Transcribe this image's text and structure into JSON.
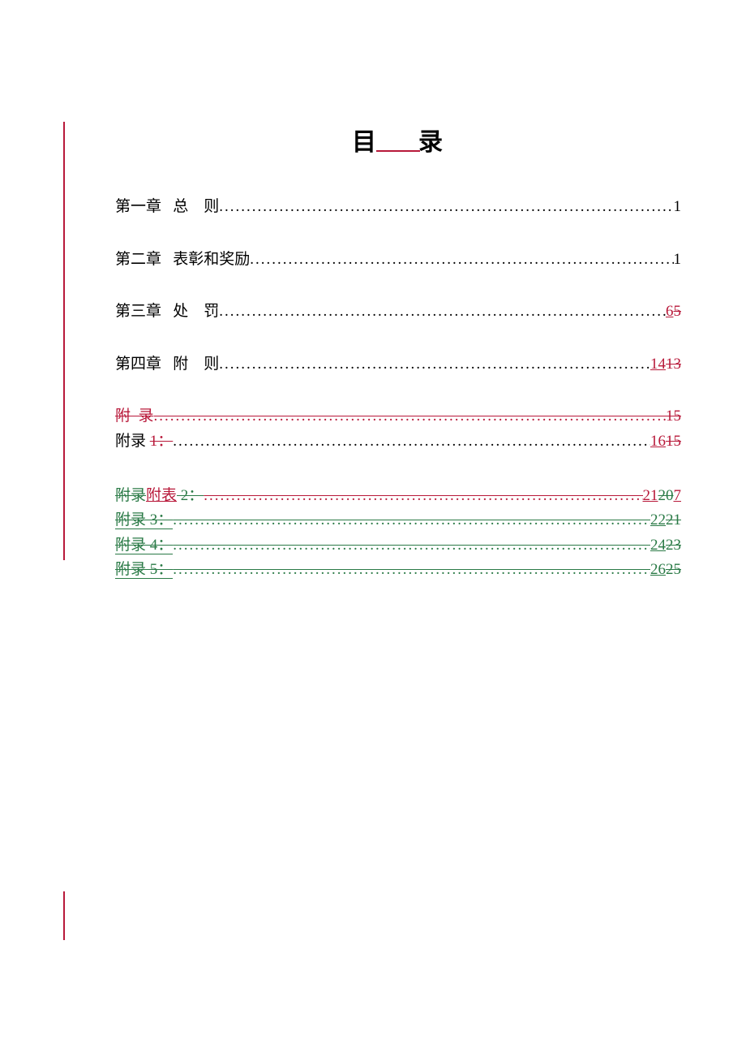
{
  "title": {
    "left": "目",
    "right": "录"
  },
  "lines": [
    {
      "kind": "simple",
      "label": "第一章   总    则",
      "page": "1",
      "spacing": "tall"
    },
    {
      "kind": "simple",
      "label": "第二章   表彰和奖励",
      "page": "1",
      "spacing": "tall"
    },
    {
      "kind": "revised-page",
      "label": "第三章   处    罚",
      "ins": "6",
      "del": "5",
      "spacing": "tall"
    },
    {
      "kind": "revised-page",
      "label": "第四章   附    则",
      "ins": "14",
      "del": "13",
      "spacing": "tall"
    },
    {
      "kind": "deleted-all",
      "label": "附  录",
      "page": "15",
      "spacing": "short"
    },
    {
      "kind": "appendix1",
      "label_plain": "附录 ",
      "label_del": "1：",
      "ins": "16",
      "del": "15",
      "spacing": "short"
    },
    {
      "kind": "gap"
    },
    {
      "kind": "appendix2",
      "del": "附录",
      "ins": "附表",
      "tail_del": " 2：",
      "pg_ins1": "21",
      "pg_del": "20",
      "pg_ins2": "7",
      "spacing": "short"
    },
    {
      "kind": "moved",
      "label": "附录 3：",
      "ins": "22",
      "del": "21",
      "spacing": "short"
    },
    {
      "kind": "moved",
      "label": "附录 4：",
      "ins": "24",
      "del": "23",
      "spacing": "short"
    },
    {
      "kind": "moved",
      "label": "附录 5：",
      "ins": "26",
      "del": "25",
      "spacing": "short"
    }
  ],
  "colors": {
    "revision": "#b8193a",
    "move": "#2a7a46",
    "link": "#0000cc",
    "text": "#000000",
    "background": "#ffffff"
  }
}
